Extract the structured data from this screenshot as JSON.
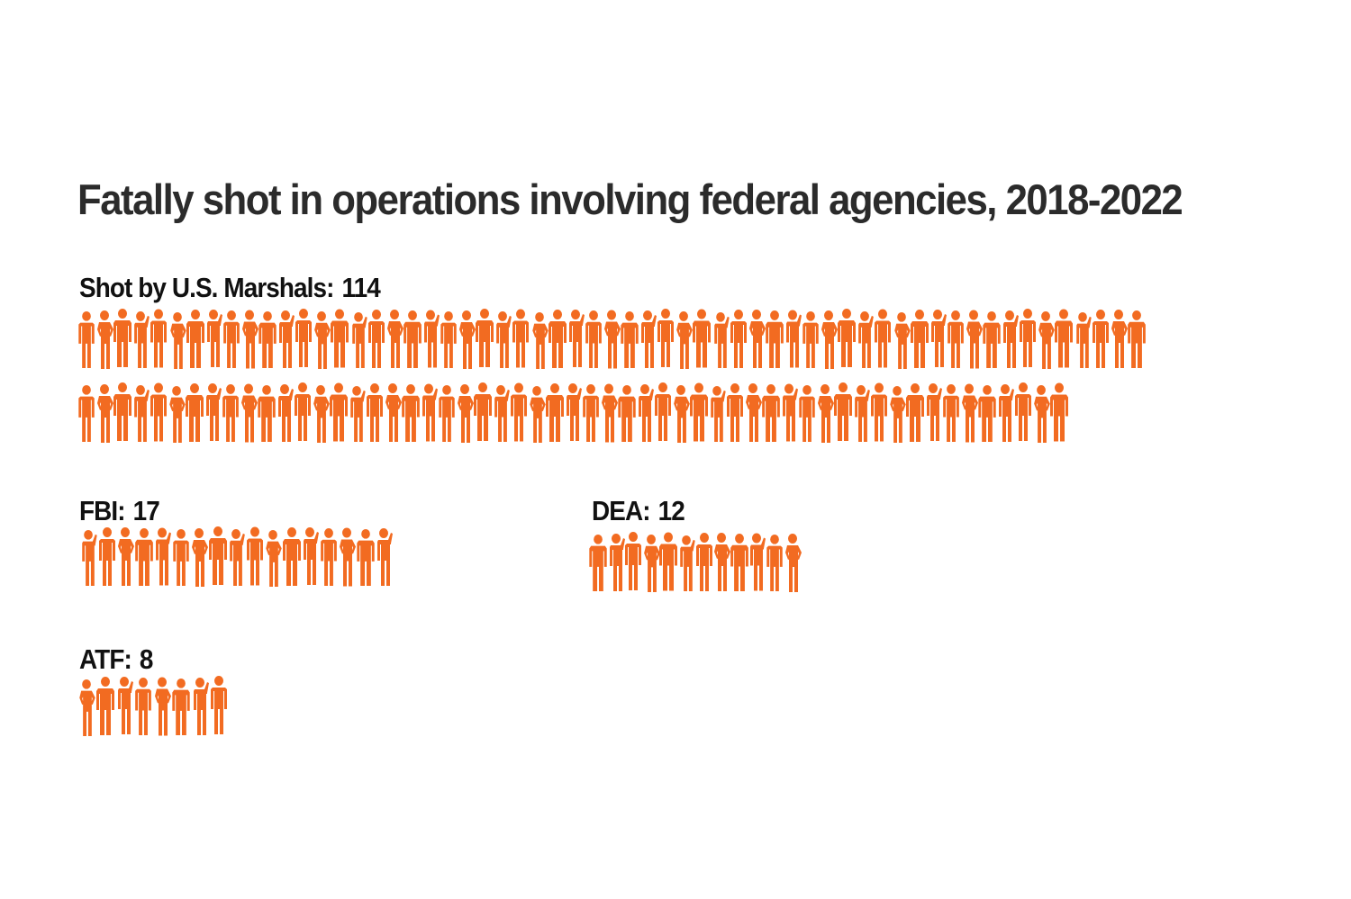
{
  "chart_data": {
    "type": "pictogram",
    "title": "Fatally shot in operations involving federal agencies, 2018-2022",
    "unit": "one figure = one person",
    "color": "#f26b21",
    "groups": [
      {
        "label": "Shot by U.S. Marshals:",
        "value": 114,
        "value_text": "114"
      },
      {
        "label": "FBI:",
        "value": 17,
        "value_text": "17"
      },
      {
        "label": "DEA:",
        "value": 12,
        "value_text": "12"
      },
      {
        "label": "ATF:",
        "value": 8,
        "value_text": "8"
      }
    ]
  }
}
